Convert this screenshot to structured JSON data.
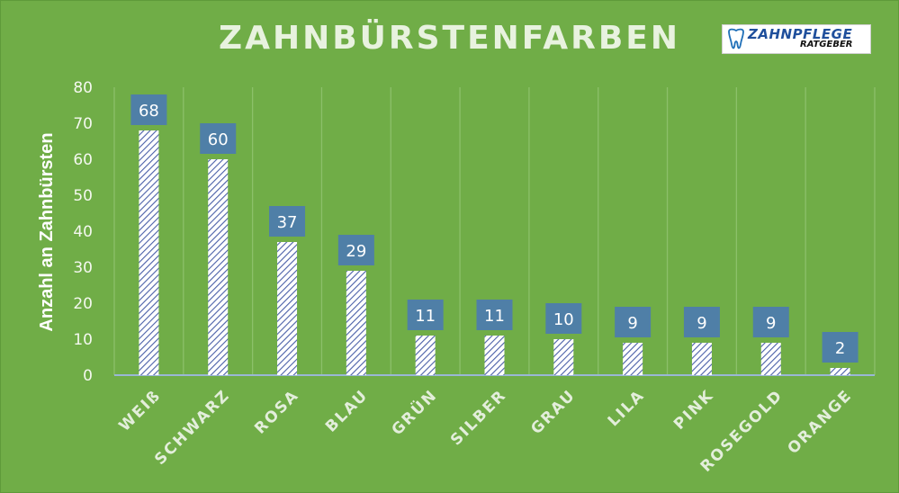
{
  "brand": {
    "main": "ZAHNPFLEGE",
    "sub": "RATGEBER"
  },
  "chart_data": {
    "type": "bar",
    "title": "ZAHNBÜRSTENFARBEN",
    "xlabel": "",
    "ylabel": "Anzahl an Zahnbürsten",
    "ylim": [
      0,
      80
    ],
    "yticks": [
      0,
      10,
      20,
      30,
      40,
      50,
      60,
      70,
      80
    ],
    "grid": "vertical",
    "categories": [
      "WEIß",
      "SCHWARZ",
      "ROSA",
      "BLAU",
      "GRÜN",
      "SILBER",
      "GRAU",
      "LILA",
      "PINK",
      "ROSEGOLD",
      "ORANGE"
    ],
    "values": [
      68,
      60,
      37,
      29,
      11,
      11,
      10,
      9,
      9,
      9,
      2
    ],
    "colors": {
      "background": "#70ad47",
      "bar_hatch": "#4a5fa8",
      "label_box": "#4f7fa7",
      "grid": "#8cc06a"
    }
  }
}
